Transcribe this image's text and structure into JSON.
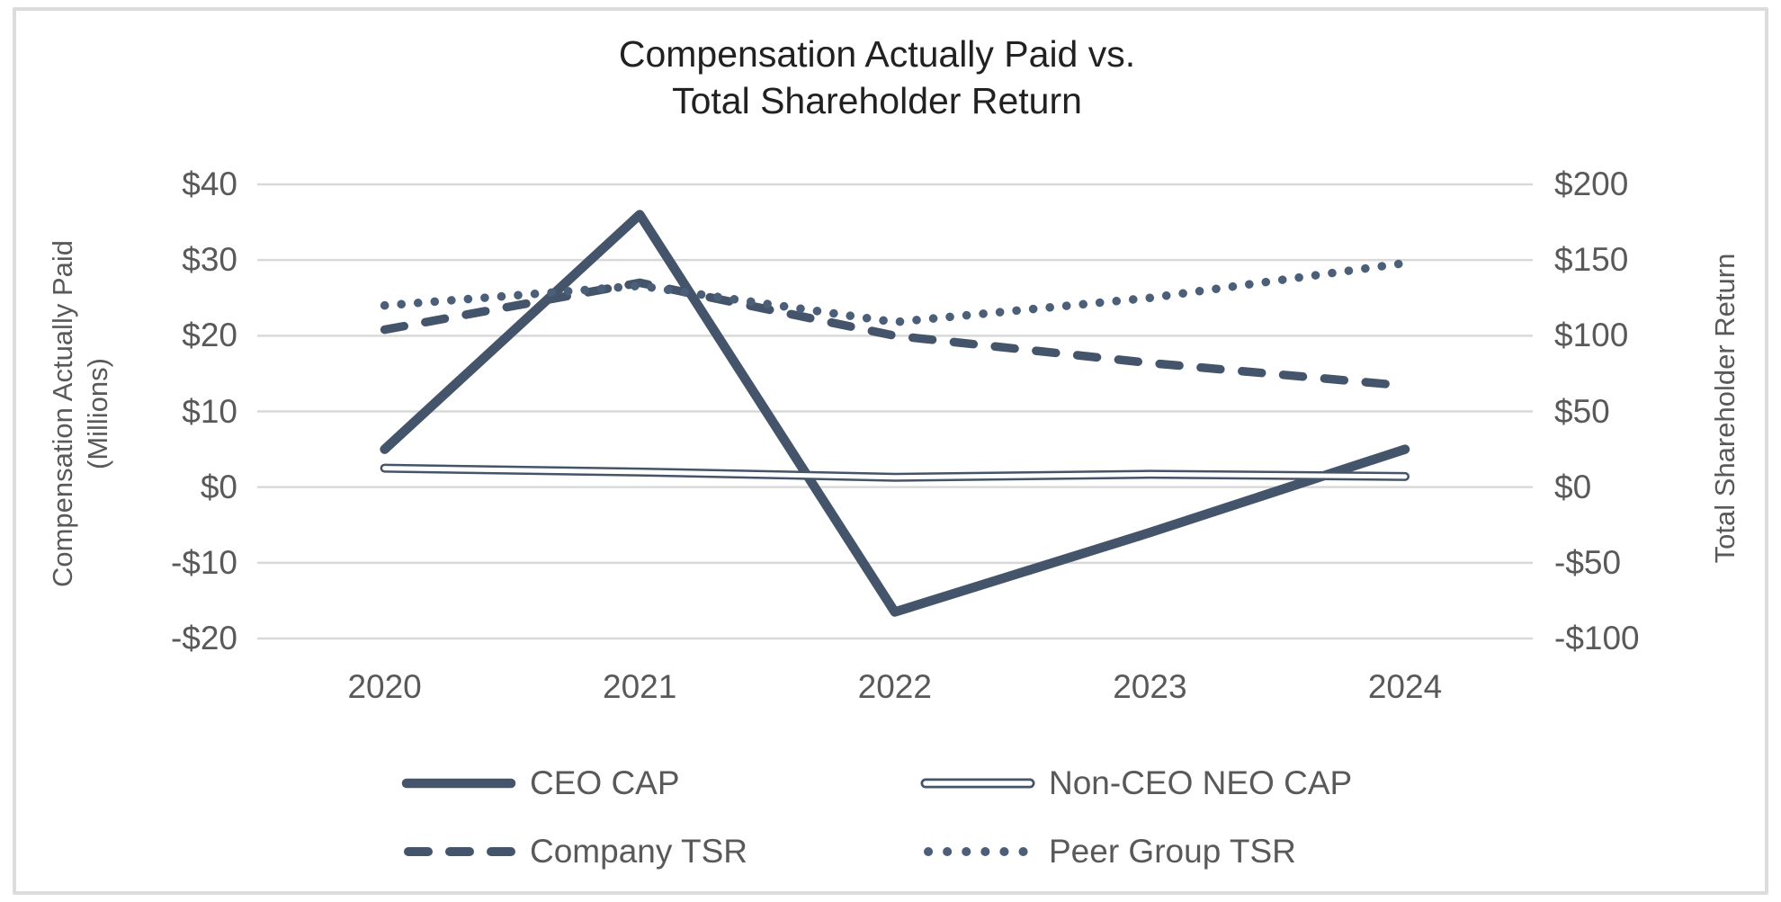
{
  "chart_data": {
    "type": "line",
    "title_lines": [
      "Compensation Actually Paid vs.",
      "Total Shareholder Return"
    ],
    "categories": [
      "2020",
      "2021",
      "2022",
      "2023",
      "2024"
    ],
    "left_axis": {
      "title_lines": [
        "Compensation Actually Paid",
        "(Millions)"
      ],
      "ticks": [
        "$40",
        "$30",
        "$20",
        "$10",
        "$0",
        "-$10",
        "-$20"
      ],
      "tick_values": [
        40,
        30,
        20,
        10,
        0,
        -10,
        -20
      ],
      "ylim": [
        -20,
        40
      ]
    },
    "right_axis": {
      "title": "Total Shareholder Return",
      "ticks": [
        "$200",
        "$150",
        "$100",
        "$50",
        "$0",
        "-$50",
        "-$100"
      ],
      "tick_values": [
        200,
        150,
        100,
        50,
        0,
        -50,
        -100
      ],
      "ylim": [
        -100,
        200
      ]
    },
    "series": [
      {
        "name": "CEO CAP",
        "axis": "left",
        "style": "solid-thick",
        "values": [
          5,
          36,
          -16.5,
          -6,
          5
        ]
      },
      {
        "name": "Non-CEO NEO CAP",
        "axis": "left",
        "style": "double-thin",
        "values": [
          2.5,
          2.0,
          1.3,
          1.7,
          1.4
        ]
      },
      {
        "name": "Company TSR",
        "axis": "right",
        "style": "dashed",
        "values": [
          104,
          135,
          100,
          82,
          67
        ]
      },
      {
        "name": "Peer Group TSR",
        "axis": "right",
        "style": "dotted",
        "values": [
          120,
          133,
          109,
          125,
          148
        ]
      }
    ],
    "legend_position": "bottom",
    "grid": true,
    "colors": {
      "line": "#44546A",
      "dotted_line": "#4C5F78",
      "gridline": "#D9D9D9",
      "tick_text": "#595959",
      "title_text": "#212121",
      "frame_border": "#DCDCDC",
      "background": "#FFFFFF"
    }
  }
}
